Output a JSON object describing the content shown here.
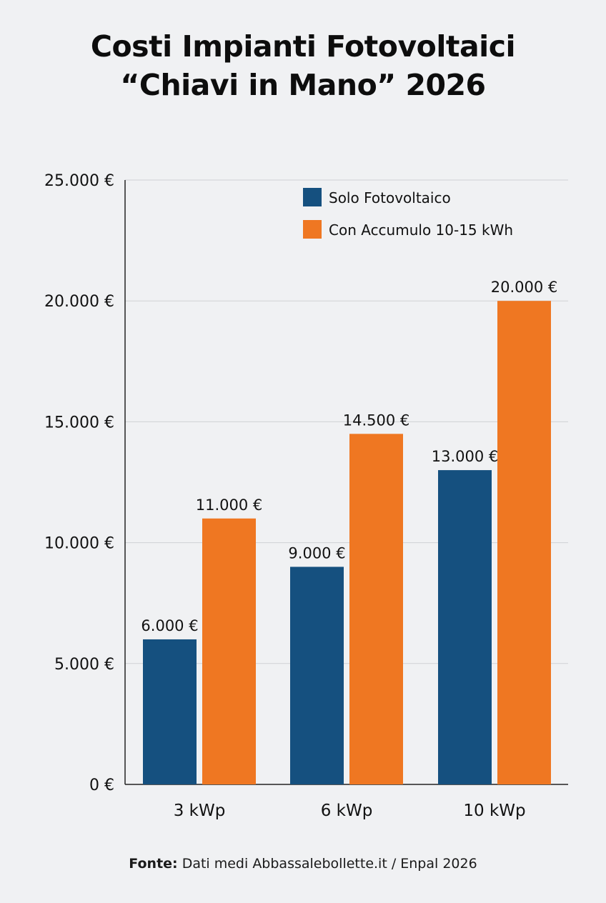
{
  "title_line1": "Costi Impianti Fotovoltaici",
  "title_line2": "“Chiavi in Mano” 2026",
  "source": {
    "label": "Fonte:",
    "text": " Dati medi Abbassalebollette.it / Enpal 2026"
  },
  "colors": {
    "solo": "#15507f",
    "accumulo": "#ef7722",
    "grid": "#cfd1d4",
    "axis": "#222222",
    "background": "#f0f1f3"
  },
  "chart_data": {
    "type": "bar",
    "categories": [
      "3 kWp",
      "6 kWp",
      "10 kWp"
    ],
    "series": [
      {
        "name": "Solo Fotovoltaico",
        "values": [
          6000,
          9000,
          13000
        ],
        "labels": [
          "6.000 €",
          "9.000 €",
          "13.000 €"
        ]
      },
      {
        "name": "Con Accumulo 10-15 kWh",
        "values": [
          11000,
          14500,
          20000
        ],
        "labels": [
          "11.000 €",
          "14.500 €",
          "20.000 €"
        ]
      }
    ],
    "yticks": [
      0,
      5000,
      10000,
      15000,
      20000,
      25000
    ],
    "ytick_labels": [
      "0 €",
      "5.000 €",
      "10.000 €",
      "15.000 €",
      "20.000 €",
      "25.000 €"
    ],
    "ylim": [
      0,
      25000
    ],
    "grid": true,
    "legend": "top-right"
  }
}
